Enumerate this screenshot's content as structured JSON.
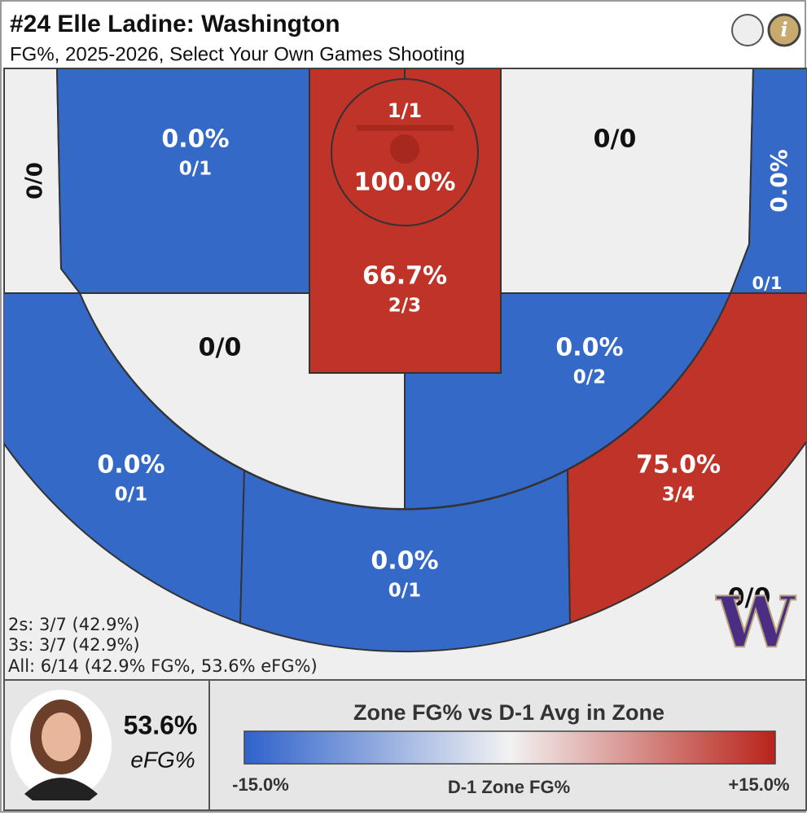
{
  "header": {
    "title": "#24 Elle Ladine: Washington",
    "subtitle": "FG%, 2025-2026, Select Your Own Games Shooting"
  },
  "zones": [
    {
      "shots": "0/0",
      "color": "#efefef"
    },
    {
      "fg": "0.0%",
      "shots": "0/1",
      "color": "#3569c8"
    },
    {
      "fg": "100.0%",
      "shots": "1/1",
      "color": "#bf3328"
    },
    {
      "fg": "66.7%",
      "shots": "2/3",
      "color": "#bf3328"
    },
    {
      "shots": "0/0",
      "color": "#efefef"
    },
    {
      "fg": "0.0%",
      "shots": "0/1",
      "color": "#3569c8"
    },
    {
      "shots": "0/0",
      "color": "#efefef"
    },
    {
      "fg": "0.0%",
      "shots": "0/2",
      "color": "#3569c8"
    },
    {
      "fg": "0.0%",
      "shots": "0/1",
      "color": "#3569c8"
    },
    {
      "fg": "0.0%",
      "shots": "0/1",
      "color": "#3569c8"
    },
    {
      "fg": "75.0%",
      "shots": "3/4",
      "color": "#bf3328"
    },
    {
      "shots": "0/0",
      "color": "#efefef"
    }
  ],
  "summary": [
    "2s: 3/7 (42.9%)",
    "3s: 3/7 (42.9%)",
    "All: 6/14 (42.9% FG%, 53.6% eFG%)"
  ],
  "logo": "W",
  "player": {
    "efg_value": "53.6%",
    "efg_label": "eFG%"
  },
  "legend": {
    "title": "Zone FG% vs D-1 Avg in Zone",
    "min_label": "-15.0%",
    "max_label": "+15.0%",
    "axis_label": "D-1 Zone FG%",
    "low_color": "#2f62cc",
    "mid_color": "#f2f2f2",
    "high_color": "#b9231a"
  }
}
